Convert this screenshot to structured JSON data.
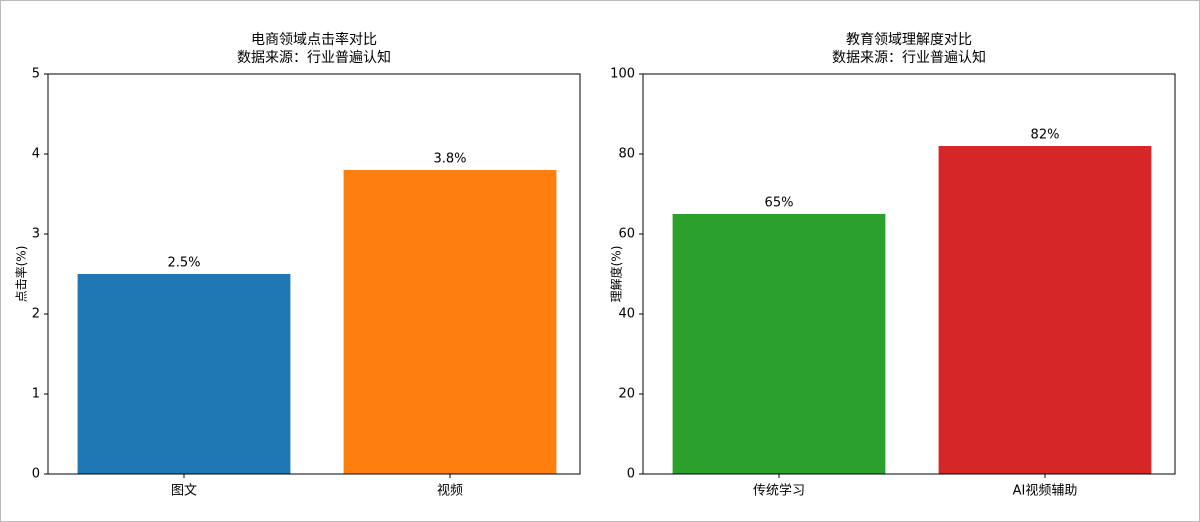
{
  "chart_data": [
    {
      "type": "bar",
      "title": "电商领域点击率对比",
      "subtitle": "数据来源：行业普遍认知",
      "y_label": "点击率(%)",
      "categories": [
        "图文",
        "视频"
      ],
      "values": [
        2.5,
        3.8
      ],
      "value_labels": [
        "2.5%",
        "3.8%"
      ],
      "colors": [
        "#1f77b4",
        "#ff7f0e"
      ],
      "ylim": [
        0,
        5
      ],
      "yticks": [
        0,
        1,
        2,
        3,
        4,
        5
      ]
    },
    {
      "type": "bar",
      "title": "教育领域理解度对比",
      "subtitle": "数据来源：行业普遍认知",
      "y_label": "理解度(%)",
      "categories": [
        "传统学习",
        "AI视频辅助"
      ],
      "values": [
        65,
        82
      ],
      "value_labels": [
        "65%",
        "82%"
      ],
      "colors": [
        "#2ca02c",
        "#d62728"
      ],
      "ylim": [
        0,
        100
      ],
      "yticks": [
        0,
        20,
        40,
        60,
        80,
        100
      ]
    }
  ]
}
